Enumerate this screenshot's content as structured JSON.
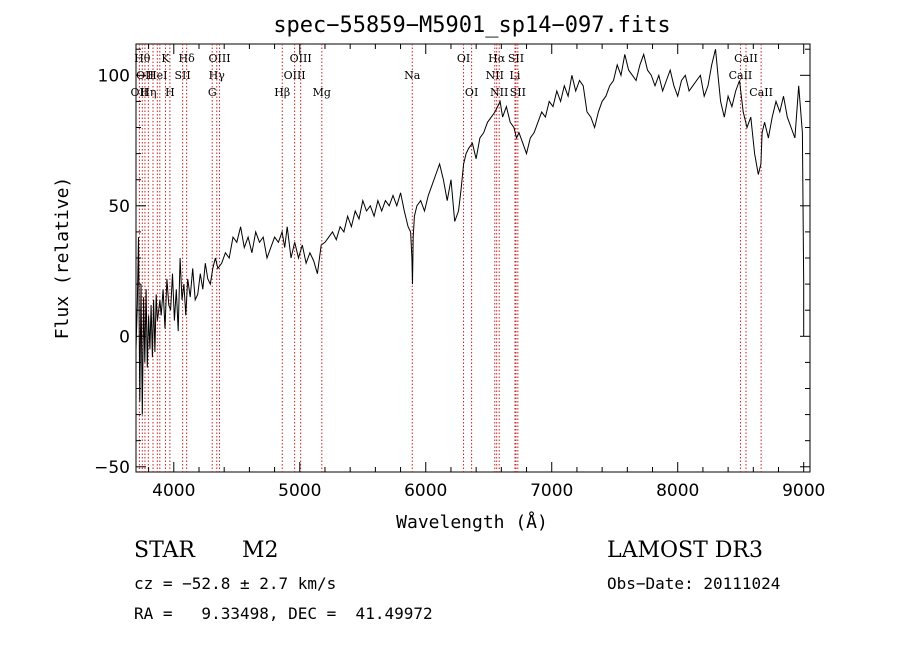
{
  "chart_data": {
    "type": "line",
    "title": "spec−55859−M5901_sp14−097.fits",
    "xlabel": "Wavelength (Å)",
    "ylabel": "Flux (relative)",
    "xlim": [
      3700,
      9050
    ],
    "ylim": [
      -52,
      112
    ],
    "xticks": [
      4000,
      5000,
      6000,
      7000,
      8000,
      9000
    ],
    "yticks": [
      -50,
      0,
      50,
      100
    ],
    "xtick_labels": [
      "4000",
      "5000",
      "6000",
      "7000",
      "8000",
      "9000"
    ],
    "ytick_labels": [
      "−50",
      "0",
      "50",
      "100"
    ],
    "series": [
      {
        "name": "spectrum",
        "x": [
          3700,
          3710,
          3720,
          3730,
          3740,
          3750,
          3760,
          3770,
          3780,
          3790,
          3800,
          3810,
          3820,
          3830,
          3840,
          3850,
          3860,
          3870,
          3880,
          3890,
          3900,
          3915,
          3930,
          3945,
          3960,
          3975,
          3990,
          4005,
          4020,
          4035,
          4050,
          4065,
          4080,
          4095,
          4110,
          4130,
          4150,
          4170,
          4190,
          4210,
          4230,
          4250,
          4270,
          4290,
          4310,
          4330,
          4350,
          4380,
          4410,
          4440,
          4470,
          4500,
          4530,
          4560,
          4590,
          4620,
          4650,
          4680,
          4710,
          4740,
          4770,
          4800,
          4830,
          4860,
          4880,
          4900,
          4930,
          4960,
          4990,
          5020,
          5050,
          5080,
          5110,
          5140,
          5170,
          5200,
          5230,
          5260,
          5290,
          5320,
          5350,
          5380,
          5410,
          5440,
          5470,
          5500,
          5530,
          5560,
          5590,
          5620,
          5650,
          5680,
          5710,
          5740,
          5770,
          5800,
          5830,
          5860,
          5880,
          5890,
          5895,
          5900,
          5910,
          5930,
          5960,
          5990,
          6020,
          6050,
          6080,
          6110,
          6140,
          6170,
          6200,
          6230,
          6260,
          6280,
          6300,
          6320,
          6340,
          6370,
          6400,
          6430,
          6460,
          6490,
          6520,
          6550,
          6570,
          6590,
          6610,
          6640,
          6670,
          6700,
          6720,
          6740,
          6770,
          6800,
          6830,
          6860,
          6890,
          6920,
          6950,
          6980,
          7010,
          7040,
          7070,
          7100,
          7130,
          7160,
          7190,
          7220,
          7250,
          7280,
          7310,
          7340,
          7370,
          7400,
          7430,
          7460,
          7490,
          7520,
          7550,
          7580,
          7610,
          7640,
          7670,
          7700,
          7730,
          7760,
          7790,
          7820,
          7850,
          7880,
          7910,
          7940,
          7970,
          8000,
          8030,
          8060,
          8090,
          8120,
          8150,
          8180,
          8210,
          8240,
          8270,
          8300,
          8320,
          8340,
          8370,
          8400,
          8430,
          8460,
          8490,
          8520,
          8550,
          8580,
          8610,
          8640,
          8660,
          8670,
          8690,
          8720,
          8750,
          8780,
          8810,
          8840,
          8870,
          8900,
          8930,
          8960,
          8990,
          9000,
          9000,
          9000
        ],
        "values": [
          -5,
          12,
          38,
          -25,
          20,
          -30,
          15,
          -10,
          18,
          -12,
          8,
          -5,
          12,
          -8,
          14,
          -6,
          16,
          6,
          10,
          14,
          8,
          18,
          3,
          22,
          12,
          10,
          24,
          6,
          18,
          2,
          30,
          14,
          20,
          8,
          22,
          15,
          26,
          14,
          16,
          24,
          18,
          28,
          22,
          20,
          26,
          30,
          26,
          28,
          32,
          30,
          38,
          36,
          42,
          34,
          38,
          32,
          40,
          36,
          38,
          30,
          34,
          38,
          36,
          40,
          34,
          42,
          30,
          36,
          30,
          35,
          28,
          32,
          29,
          24,
          35,
          36,
          38,
          40,
          37,
          42,
          40,
          46,
          42,
          48,
          45,
          52,
          48,
          50,
          46,
          52,
          48,
          52,
          50,
          54,
          50,
          55,
          48,
          42,
          40,
          30,
          20,
          38,
          46,
          50,
          52,
          48,
          54,
          58,
          62,
          66,
          60,
          52,
          60,
          44,
          48,
          56,
          66,
          70,
          72,
          74,
          68,
          76,
          78,
          82,
          84,
          86,
          88,
          90,
          84,
          88,
          82,
          80,
          76,
          78,
          74,
          70,
          76,
          78,
          82,
          86,
          84,
          90,
          88,
          94,
          90,
          96,
          92,
          100,
          94,
          98,
          96,
          86,
          84,
          80,
          86,
          90,
          92,
          96,
          98,
          104,
          100,
          108,
          102,
          100,
          98,
          104,
          108,
          102,
          100,
          96,
          100,
          94,
          98,
          102,
          96,
          92,
          98,
          100,
          94,
          96,
          98,
          100,
          92,
          96,
          104,
          110,
          100,
          90,
          84,
          92,
          88,
          94,
          98,
          86,
          80,
          84,
          70,
          62,
          66,
          78,
          82,
          76,
          84,
          90,
          86,
          92,
          84,
          80,
          76,
          96,
          78,
          20,
          0,
          0
        ]
      }
    ],
    "line_markers": [
      {
        "x": 3727,
        "label": "OII",
        "row": 3
      },
      {
        "x": 3750,
        "label": "Hθ",
        "row": 1
      },
      {
        "x": 3771,
        "label": "OII",
        "row": 2
      },
      {
        "x": 3798,
        "label": "Hη",
        "row": 3
      },
      {
        "x": 3835,
        "label": "",
        "row": 0
      },
      {
        "x": 3869,
        "label": "HeI",
        "row": 2
      },
      {
        "x": 3889,
        "label": "",
        "row": 0
      },
      {
        "x": 3934,
        "label": "K",
        "row": 1
      },
      {
        "x": 3969,
        "label": "H",
        "row": 3
      },
      {
        "x": 4070,
        "label": "SII",
        "row": 2
      },
      {
        "x": 4102,
        "label": "Hδ",
        "row": 1
      },
      {
        "x": 4305,
        "label": "G",
        "row": 3
      },
      {
        "x": 4341,
        "label": "Hγ",
        "row": 2
      },
      {
        "x": 4363,
        "label": "OIII",
        "row": 1
      },
      {
        "x": 4861,
        "label": "Hβ",
        "row": 3
      },
      {
        "x": 4959,
        "label": "OIII",
        "row": 2
      },
      {
        "x": 5007,
        "label": "OIII",
        "row": 1
      },
      {
        "x": 5175,
        "label": "Mg",
        "row": 3
      },
      {
        "x": 5893,
        "label": "Na",
        "row": 2
      },
      {
        "x": 6300,
        "label": "OI",
        "row": 1
      },
      {
        "x": 6364,
        "label": "OI",
        "row": 3
      },
      {
        "x": 6548,
        "label": "NII",
        "row": 2
      },
      {
        "x": 6563,
        "label": "Hα",
        "row": 1
      },
      {
        "x": 6583,
        "label": "NII",
        "row": 3
      },
      {
        "x": 6708,
        "label": "Li",
        "row": 2
      },
      {
        "x": 6716,
        "label": "SII",
        "row": 1
      },
      {
        "x": 6731,
        "label": "SII",
        "row": 3
      },
      {
        "x": 8498,
        "label": "CaII",
        "row": 2
      },
      {
        "x": 8542,
        "label": "CaII",
        "row": 1
      },
      {
        "x": 8662,
        "label": "CaII",
        "row": 3
      }
    ]
  },
  "info": {
    "object_class": "STAR",
    "subclass": "M2",
    "survey": "LAMOST DR3",
    "cz": "cz = −52.8 ± 2.7 km/s",
    "obs_date": "Obs−Date: 20111024",
    "radec": "RA =   9.33498, DEC =  41.49972"
  }
}
